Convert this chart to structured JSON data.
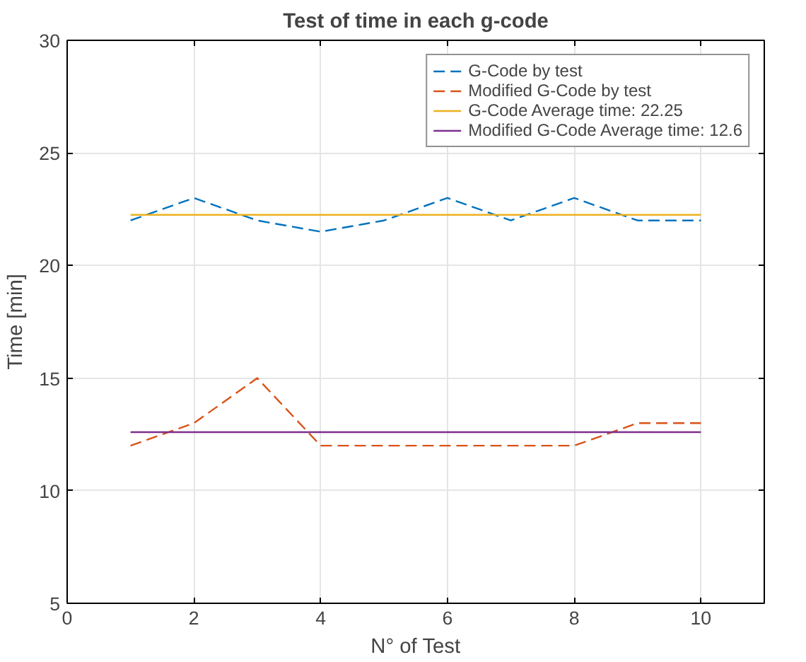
{
  "chart_data": {
    "type": "line",
    "title": "Test of time in each g-code",
    "xlabel": "N° of Test",
    "ylabel": "Time [min]",
    "x": [
      1,
      2,
      3,
      4,
      5,
      6,
      7,
      8,
      9,
      10
    ],
    "series": [
      {
        "name": "G-Code by test",
        "color": "#0072bd",
        "line_style": "dashed",
        "values": [
          22,
          23,
          22,
          21.5,
          22,
          23,
          22,
          23,
          22,
          22
        ]
      },
      {
        "name": "Modified G-Code by test",
        "color": "#d95319",
        "line_style": "dashed",
        "values": [
          12,
          13,
          15,
          12,
          12,
          12,
          12,
          12,
          13,
          13
        ]
      },
      {
        "name": "G-Code Average time: 22.25",
        "color": "#edb120",
        "line_style": "solid",
        "values": [
          22.25,
          22.25,
          22.25,
          22.25,
          22.25,
          22.25,
          22.25,
          22.25,
          22.25,
          22.25
        ]
      },
      {
        "name": "Modified G-Code Average time: 12.6",
        "color": "#7e2f8e",
        "line_style": "solid",
        "values": [
          12.6,
          12.6,
          12.6,
          12.6,
          12.6,
          12.6,
          12.6,
          12.6,
          12.6,
          12.6
        ]
      }
    ],
    "xlim": [
      0,
      11
    ],
    "xticks": [
      0,
      2,
      4,
      6,
      8,
      10
    ],
    "ylim": [
      5,
      30
    ],
    "yticks": [
      5,
      10,
      15,
      20,
      25,
      30
    ],
    "grid": true,
    "legend": "top right",
    "marker": "none"
  }
}
